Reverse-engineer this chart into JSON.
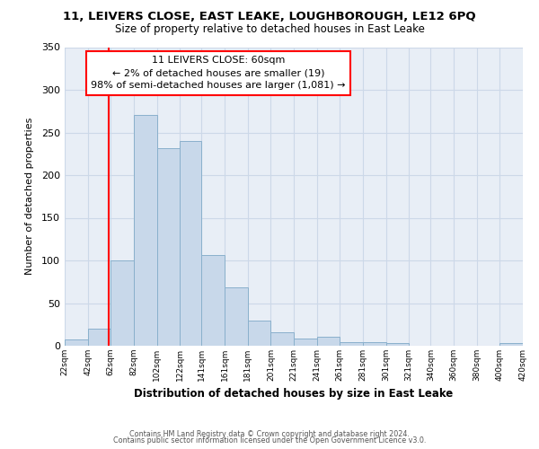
{
  "title": "11, LEIVERS CLOSE, EAST LEAKE, LOUGHBOROUGH, LE12 6PQ",
  "subtitle": "Size of property relative to detached houses in East Leake",
  "xlabel": "Distribution of detached houses by size in East Leake",
  "ylabel": "Number of detached properties",
  "bar_color": "#c8d8ea",
  "bar_edge_color": "#8ab0cc",
  "grid_color": "#ccd8e8",
  "bg_color": "#e8eef6",
  "red_line_x": 60,
  "annotation_title": "11 LEIVERS CLOSE: 60sqm",
  "annotation_line1": "← 2% of detached houses are smaller (19)",
  "annotation_line2": "98% of semi-detached houses are larger (1,081) →",
  "bin_edges": [
    22,
    42,
    62,
    82,
    102,
    122,
    141,
    161,
    181,
    201,
    221,
    241,
    261,
    281,
    301,
    321,
    340,
    360,
    380,
    400,
    420
  ],
  "bin_heights": [
    7,
    20,
    100,
    271,
    232,
    240,
    106,
    68,
    30,
    16,
    8,
    11,
    4,
    4,
    3,
    0,
    0,
    0,
    0,
    3
  ],
  "ylim": [
    0,
    350
  ],
  "yticks": [
    0,
    50,
    100,
    150,
    200,
    250,
    300,
    350
  ],
  "footer_line1": "Contains HM Land Registry data © Crown copyright and database right 2024.",
  "footer_line2": "Contains public sector information licensed under the Open Government Licence v3.0."
}
